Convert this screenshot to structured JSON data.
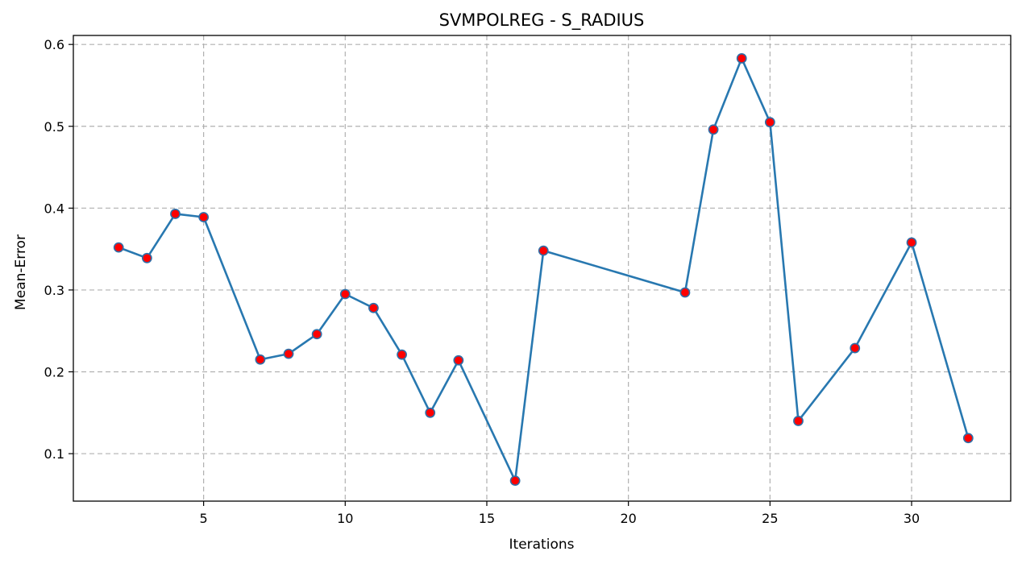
{
  "chart_data": {
    "type": "line",
    "title": "SVMPOLREG - S_RADIUS",
    "xlabel": "Iterations",
    "ylabel": "Mean-Error",
    "x": [
      2,
      3,
      4,
      5,
      7,
      8,
      9,
      10,
      11,
      12,
      13,
      14,
      16,
      17,
      22,
      23,
      24,
      25,
      26,
      28,
      30,
      32
    ],
    "series": [
      {
        "values": [
          0.352,
          0.339,
          0.393,
          0.389,
          0.215,
          0.222,
          0.246,
          0.295,
          0.278,
          0.221,
          0.15,
          0.214,
          0.067,
          0.348,
          0.297,
          0.496,
          0.583,
          0.505,
          0.14,
          0.229,
          0.358,
          0.119
        ]
      }
    ],
    "xlim": [
      0.4,
      33.5
    ],
    "ylim": [
      0.042,
      0.611
    ],
    "xticks": [
      "5",
      "10",
      "15",
      "20",
      "25",
      "30"
    ],
    "yticks": [
      "0.1",
      "0.2",
      "0.3",
      "0.4",
      "0.5",
      "0.6"
    ],
    "grid": true,
    "colors": {
      "line": "#2878b0",
      "marker_fill": "#ff0000",
      "marker_edge": "#2f6fa8"
    }
  }
}
